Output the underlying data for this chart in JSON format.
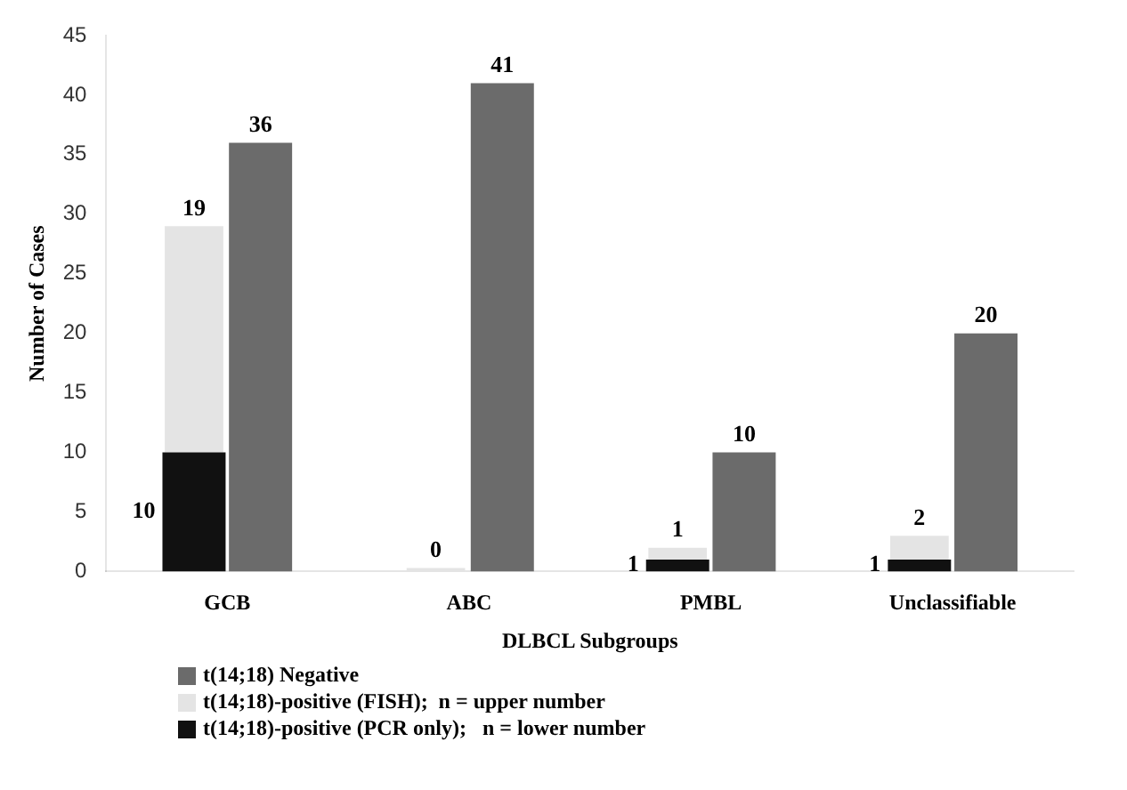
{
  "chart_data": {
    "type": "bar",
    "xlabel": "DLBCL Subgroups",
    "ylabel": "Number of Cases",
    "categories": [
      "GCB",
      "ABC",
      "PMBL",
      "Unclassifiable"
    ],
    "series": [
      {
        "name": "t(14;18)-positive (PCR only);   n = lower number",
        "color": "#111111",
        "values": [
          10,
          0,
          1,
          1
        ],
        "value_labels": [
          "10",
          null,
          "1",
          "1"
        ]
      },
      {
        "name": "t(14;18)-positive (FISH);  n = upper number",
        "color": "#e4e4e4",
        "base": [
          10,
          0,
          1,
          1
        ],
        "values": [
          19,
          0,
          1,
          2
        ],
        "value_labels": [
          "19",
          "0",
          "1",
          "2"
        ]
      },
      {
        "name": "t(14;18) Negative",
        "color": "#6b6b6b",
        "values": [
          36,
          41,
          10,
          20
        ],
        "value_labels": [
          "36",
          "41",
          "10",
          "20"
        ]
      }
    ],
    "ylim": [
      0,
      45
    ],
    "yticks": [
      0,
      5,
      10,
      15,
      20,
      25,
      30,
      35,
      40,
      45
    ],
    "grid": false,
    "legend": "bottom"
  }
}
